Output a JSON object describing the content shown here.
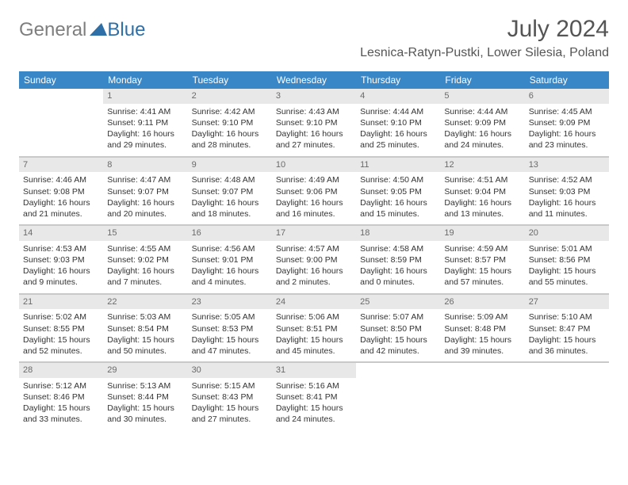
{
  "logo": {
    "text1": "General",
    "text2": "Blue"
  },
  "title": {
    "month": "July 2024",
    "location": "Lesnica-Ratyn-Pustki, Lower Silesia, Poland"
  },
  "colors": {
    "header_bg": "#3a87c8",
    "header_text": "#ffffff",
    "daynum_bg": "#e8e8e8",
    "sep": "#c9c9c9"
  },
  "weekdays": [
    "Sunday",
    "Monday",
    "Tuesday",
    "Wednesday",
    "Thursday",
    "Friday",
    "Saturday"
  ],
  "days": [
    {
      "n": 1,
      "sr": "4:41 AM",
      "ss": "9:11 PM",
      "dl": "16 hours and 29 minutes."
    },
    {
      "n": 2,
      "sr": "4:42 AM",
      "ss": "9:10 PM",
      "dl": "16 hours and 28 minutes."
    },
    {
      "n": 3,
      "sr": "4:43 AM",
      "ss": "9:10 PM",
      "dl": "16 hours and 27 minutes."
    },
    {
      "n": 4,
      "sr": "4:44 AM",
      "ss": "9:10 PM",
      "dl": "16 hours and 25 minutes."
    },
    {
      "n": 5,
      "sr": "4:44 AM",
      "ss": "9:09 PM",
      "dl": "16 hours and 24 minutes."
    },
    {
      "n": 6,
      "sr": "4:45 AM",
      "ss": "9:09 PM",
      "dl": "16 hours and 23 minutes."
    },
    {
      "n": 7,
      "sr": "4:46 AM",
      "ss": "9:08 PM",
      "dl": "16 hours and 21 minutes."
    },
    {
      "n": 8,
      "sr": "4:47 AM",
      "ss": "9:07 PM",
      "dl": "16 hours and 20 minutes."
    },
    {
      "n": 9,
      "sr": "4:48 AM",
      "ss": "9:07 PM",
      "dl": "16 hours and 18 minutes."
    },
    {
      "n": 10,
      "sr": "4:49 AM",
      "ss": "9:06 PM",
      "dl": "16 hours and 16 minutes."
    },
    {
      "n": 11,
      "sr": "4:50 AM",
      "ss": "9:05 PM",
      "dl": "16 hours and 15 minutes."
    },
    {
      "n": 12,
      "sr": "4:51 AM",
      "ss": "9:04 PM",
      "dl": "16 hours and 13 minutes."
    },
    {
      "n": 13,
      "sr": "4:52 AM",
      "ss": "9:03 PM",
      "dl": "16 hours and 11 minutes."
    },
    {
      "n": 14,
      "sr": "4:53 AM",
      "ss": "9:03 PM",
      "dl": "16 hours and 9 minutes."
    },
    {
      "n": 15,
      "sr": "4:55 AM",
      "ss": "9:02 PM",
      "dl": "16 hours and 7 minutes."
    },
    {
      "n": 16,
      "sr": "4:56 AM",
      "ss": "9:01 PM",
      "dl": "16 hours and 4 minutes."
    },
    {
      "n": 17,
      "sr": "4:57 AM",
      "ss": "9:00 PM",
      "dl": "16 hours and 2 minutes."
    },
    {
      "n": 18,
      "sr": "4:58 AM",
      "ss": "8:59 PM",
      "dl": "16 hours and 0 minutes."
    },
    {
      "n": 19,
      "sr": "4:59 AM",
      "ss": "8:57 PM",
      "dl": "15 hours and 57 minutes."
    },
    {
      "n": 20,
      "sr": "5:01 AM",
      "ss": "8:56 PM",
      "dl": "15 hours and 55 minutes."
    },
    {
      "n": 21,
      "sr": "5:02 AM",
      "ss": "8:55 PM",
      "dl": "15 hours and 52 minutes."
    },
    {
      "n": 22,
      "sr": "5:03 AM",
      "ss": "8:54 PM",
      "dl": "15 hours and 50 minutes."
    },
    {
      "n": 23,
      "sr": "5:05 AM",
      "ss": "8:53 PM",
      "dl": "15 hours and 47 minutes."
    },
    {
      "n": 24,
      "sr": "5:06 AM",
      "ss": "8:51 PM",
      "dl": "15 hours and 45 minutes."
    },
    {
      "n": 25,
      "sr": "5:07 AM",
      "ss": "8:50 PM",
      "dl": "15 hours and 42 minutes."
    },
    {
      "n": 26,
      "sr": "5:09 AM",
      "ss": "8:48 PM",
      "dl": "15 hours and 39 minutes."
    },
    {
      "n": 27,
      "sr": "5:10 AM",
      "ss": "8:47 PM",
      "dl": "15 hours and 36 minutes."
    },
    {
      "n": 28,
      "sr": "5:12 AM",
      "ss": "8:46 PM",
      "dl": "15 hours and 33 minutes."
    },
    {
      "n": 29,
      "sr": "5:13 AM",
      "ss": "8:44 PM",
      "dl": "15 hours and 30 minutes."
    },
    {
      "n": 30,
      "sr": "5:15 AM",
      "ss": "8:43 PM",
      "dl": "15 hours and 27 minutes."
    },
    {
      "n": 31,
      "sr": "5:16 AM",
      "ss": "8:41 PM",
      "dl": "15 hours and 24 minutes."
    }
  ],
  "first_weekday_index": 1,
  "labels": {
    "sunrise": "Sunrise:",
    "sunset": "Sunset:",
    "daylight": "Daylight:"
  }
}
